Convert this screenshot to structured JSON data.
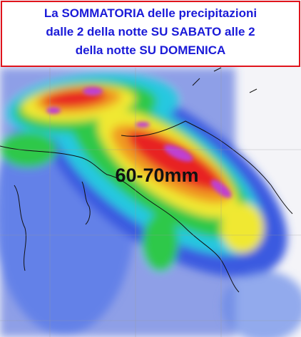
{
  "title": {
    "lines": [
      "La SOMMATORIA delle precipitazioni",
      "dalle 2 della notte SU SABATO alle 2",
      "della notte SU DOMENICA"
    ]
  },
  "annotation": "60-70mm"
}
